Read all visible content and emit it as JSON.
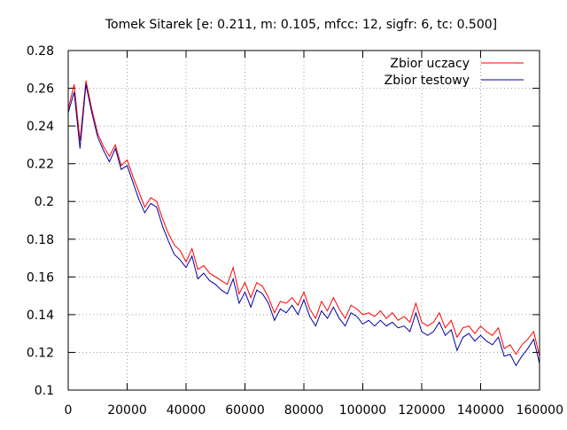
{
  "chart_data": {
    "type": "line",
    "title": "Tomek Sitarek [e: 0.211, m: 0.105, mfcc: 12, sigfr: 6, tc: 0.500]",
    "xlabel": "",
    "ylabel": "",
    "xlim": [
      0,
      160000
    ],
    "ylim": [
      0.1,
      0.28
    ],
    "x_ticks": [
      0,
      20000,
      40000,
      60000,
      80000,
      100000,
      120000,
      140000,
      160000
    ],
    "y_ticks": [
      0.1,
      0.12,
      0.14,
      0.16,
      0.18,
      0.2,
      0.22,
      0.24,
      0.26,
      0.28
    ],
    "x_tick_labels": [
      "0",
      "20000",
      "40000",
      "60000",
      "80000",
      "100000",
      "120000",
      "140000",
      "160000"
    ],
    "y_tick_labels": [
      "0.1",
      "0.12",
      "0.14",
      "0.16",
      "0.18",
      "0.2",
      "0.22",
      "0.24",
      "0.26",
      "0.28"
    ],
    "grid": true,
    "legend_position": "top-right",
    "x": [
      0,
      2000,
      4000,
      6000,
      8000,
      10000,
      12000,
      14000,
      16000,
      18000,
      20000,
      22000,
      24000,
      26000,
      28000,
      30000,
      32000,
      34000,
      36000,
      38000,
      40000,
      42000,
      44000,
      46000,
      48000,
      50000,
      52000,
      54000,
      56000,
      58000,
      60000,
      62000,
      64000,
      66000,
      68000,
      70000,
      72000,
      74000,
      76000,
      78000,
      80000,
      82000,
      84000,
      86000,
      88000,
      90000,
      92000,
      94000,
      96000,
      98000,
      100000,
      102000,
      104000,
      106000,
      108000,
      110000,
      112000,
      114000,
      116000,
      118000,
      120000,
      122000,
      124000,
      126000,
      128000,
      130000,
      132000,
      134000,
      136000,
      138000,
      140000,
      142000,
      144000,
      146000,
      148000,
      150000,
      152000,
      154000,
      156000,
      158000,
      160000
    ],
    "series": [
      {
        "name": "Zbior uczacy",
        "color": "#ff0000",
        "values": [
          0.249,
          0.262,
          0.232,
          0.264,
          0.249,
          0.236,
          0.229,
          0.224,
          0.23,
          0.219,
          0.222,
          0.213,
          0.205,
          0.197,
          0.202,
          0.2,
          0.191,
          0.183,
          0.177,
          0.174,
          0.168,
          0.175,
          0.164,
          0.166,
          0.162,
          0.16,
          0.158,
          0.156,
          0.165,
          0.151,
          0.157,
          0.149,
          0.157,
          0.155,
          0.149,
          0.141,
          0.147,
          0.146,
          0.149,
          0.145,
          0.152,
          0.143,
          0.138,
          0.147,
          0.142,
          0.149,
          0.143,
          0.138,
          0.145,
          0.143,
          0.14,
          0.141,
          0.139,
          0.142,
          0.138,
          0.141,
          0.137,
          0.139,
          0.136,
          0.146,
          0.136,
          0.134,
          0.136,
          0.141,
          0.133,
          0.137,
          0.128,
          0.133,
          0.134,
          0.13,
          0.134,
          0.131,
          0.129,
          0.133,
          0.122,
          0.124,
          0.119,
          0.124,
          0.127,
          0.131,
          0.118
        ]
      },
      {
        "name": "Zbior testowy",
        "color": "#0000a0",
        "values": [
          0.247,
          0.258,
          0.228,
          0.262,
          0.247,
          0.234,
          0.227,
          0.221,
          0.228,
          0.217,
          0.219,
          0.21,
          0.201,
          0.194,
          0.199,
          0.197,
          0.187,
          0.179,
          0.172,
          0.169,
          0.165,
          0.171,
          0.159,
          0.162,
          0.158,
          0.156,
          0.153,
          0.151,
          0.159,
          0.146,
          0.152,
          0.144,
          0.153,
          0.151,
          0.146,
          0.137,
          0.143,
          0.141,
          0.145,
          0.14,
          0.148,
          0.139,
          0.134,
          0.142,
          0.138,
          0.144,
          0.138,
          0.134,
          0.141,
          0.139,
          0.135,
          0.137,
          0.134,
          0.137,
          0.134,
          0.136,
          0.133,
          0.134,
          0.131,
          0.141,
          0.131,
          0.129,
          0.131,
          0.136,
          0.129,
          0.132,
          0.121,
          0.128,
          0.13,
          0.126,
          0.129,
          0.126,
          0.124,
          0.128,
          0.118,
          0.119,
          0.113,
          0.118,
          0.122,
          0.127,
          0.114
        ]
      }
    ]
  }
}
